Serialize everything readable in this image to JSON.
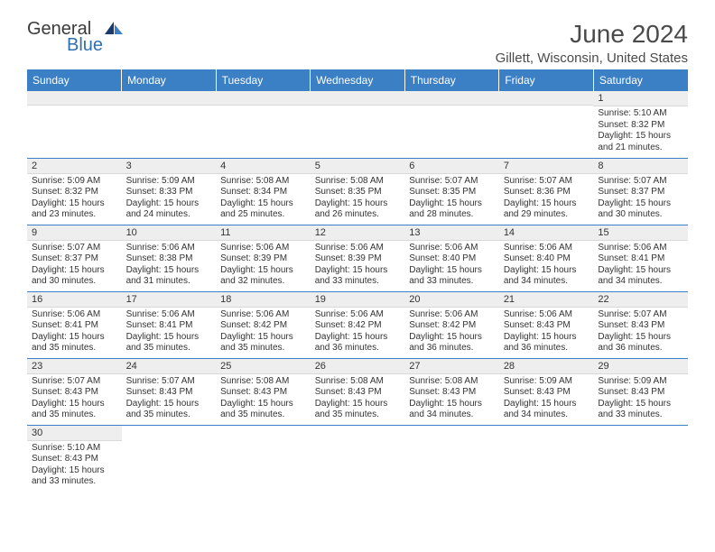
{
  "brand": {
    "general": "General",
    "blue": "Blue"
  },
  "title": "June 2024",
  "subtitle": "Gillett, Wisconsin, United States",
  "colors": {
    "header_bg": "#3b7fc4",
    "header_text": "#ffffff",
    "daynum_bg": "#eeeeee",
    "row_divider": "#3b7fc4",
    "text": "#333333",
    "title_color": "#4a4a4a"
  },
  "weekdays": [
    "Sunday",
    "Monday",
    "Tuesday",
    "Wednesday",
    "Thursday",
    "Friday",
    "Saturday"
  ],
  "first_weekday_index": 6,
  "days": [
    {
      "n": 1,
      "sunrise": "5:10 AM",
      "sunset": "8:32 PM",
      "daylight": "15 hours and 21 minutes."
    },
    {
      "n": 2,
      "sunrise": "5:09 AM",
      "sunset": "8:32 PM",
      "daylight": "15 hours and 23 minutes."
    },
    {
      "n": 3,
      "sunrise": "5:09 AM",
      "sunset": "8:33 PM",
      "daylight": "15 hours and 24 minutes."
    },
    {
      "n": 4,
      "sunrise": "5:08 AM",
      "sunset": "8:34 PM",
      "daylight": "15 hours and 25 minutes."
    },
    {
      "n": 5,
      "sunrise": "5:08 AM",
      "sunset": "8:35 PM",
      "daylight": "15 hours and 26 minutes."
    },
    {
      "n": 6,
      "sunrise": "5:07 AM",
      "sunset": "8:35 PM",
      "daylight": "15 hours and 28 minutes."
    },
    {
      "n": 7,
      "sunrise": "5:07 AM",
      "sunset": "8:36 PM",
      "daylight": "15 hours and 29 minutes."
    },
    {
      "n": 8,
      "sunrise": "5:07 AM",
      "sunset": "8:37 PM",
      "daylight": "15 hours and 30 minutes."
    },
    {
      "n": 9,
      "sunrise": "5:07 AM",
      "sunset": "8:37 PM",
      "daylight": "15 hours and 30 minutes."
    },
    {
      "n": 10,
      "sunrise": "5:06 AM",
      "sunset": "8:38 PM",
      "daylight": "15 hours and 31 minutes."
    },
    {
      "n": 11,
      "sunrise": "5:06 AM",
      "sunset": "8:39 PM",
      "daylight": "15 hours and 32 minutes."
    },
    {
      "n": 12,
      "sunrise": "5:06 AM",
      "sunset": "8:39 PM",
      "daylight": "15 hours and 33 minutes."
    },
    {
      "n": 13,
      "sunrise": "5:06 AM",
      "sunset": "8:40 PM",
      "daylight": "15 hours and 33 minutes."
    },
    {
      "n": 14,
      "sunrise": "5:06 AM",
      "sunset": "8:40 PM",
      "daylight": "15 hours and 34 minutes."
    },
    {
      "n": 15,
      "sunrise": "5:06 AM",
      "sunset": "8:41 PM",
      "daylight": "15 hours and 34 minutes."
    },
    {
      "n": 16,
      "sunrise": "5:06 AM",
      "sunset": "8:41 PM",
      "daylight": "15 hours and 35 minutes."
    },
    {
      "n": 17,
      "sunrise": "5:06 AM",
      "sunset": "8:41 PM",
      "daylight": "15 hours and 35 minutes."
    },
    {
      "n": 18,
      "sunrise": "5:06 AM",
      "sunset": "8:42 PM",
      "daylight": "15 hours and 35 minutes."
    },
    {
      "n": 19,
      "sunrise": "5:06 AM",
      "sunset": "8:42 PM",
      "daylight": "15 hours and 36 minutes."
    },
    {
      "n": 20,
      "sunrise": "5:06 AM",
      "sunset": "8:42 PM",
      "daylight": "15 hours and 36 minutes."
    },
    {
      "n": 21,
      "sunrise": "5:06 AM",
      "sunset": "8:43 PM",
      "daylight": "15 hours and 36 minutes."
    },
    {
      "n": 22,
      "sunrise": "5:07 AM",
      "sunset": "8:43 PM",
      "daylight": "15 hours and 36 minutes."
    },
    {
      "n": 23,
      "sunrise": "5:07 AM",
      "sunset": "8:43 PM",
      "daylight": "15 hours and 35 minutes."
    },
    {
      "n": 24,
      "sunrise": "5:07 AM",
      "sunset": "8:43 PM",
      "daylight": "15 hours and 35 minutes."
    },
    {
      "n": 25,
      "sunrise": "5:08 AM",
      "sunset": "8:43 PM",
      "daylight": "15 hours and 35 minutes."
    },
    {
      "n": 26,
      "sunrise": "5:08 AM",
      "sunset": "8:43 PM",
      "daylight": "15 hours and 35 minutes."
    },
    {
      "n": 27,
      "sunrise": "5:08 AM",
      "sunset": "8:43 PM",
      "daylight": "15 hours and 34 minutes."
    },
    {
      "n": 28,
      "sunrise": "5:09 AM",
      "sunset": "8:43 PM",
      "daylight": "15 hours and 34 minutes."
    },
    {
      "n": 29,
      "sunrise": "5:09 AM",
      "sunset": "8:43 PM",
      "daylight": "15 hours and 33 minutes."
    },
    {
      "n": 30,
      "sunrise": "5:10 AM",
      "sunset": "8:43 PM",
      "daylight": "15 hours and 33 minutes."
    }
  ],
  "labels": {
    "sunrise": "Sunrise:",
    "sunset": "Sunset:",
    "daylight": "Daylight:"
  }
}
